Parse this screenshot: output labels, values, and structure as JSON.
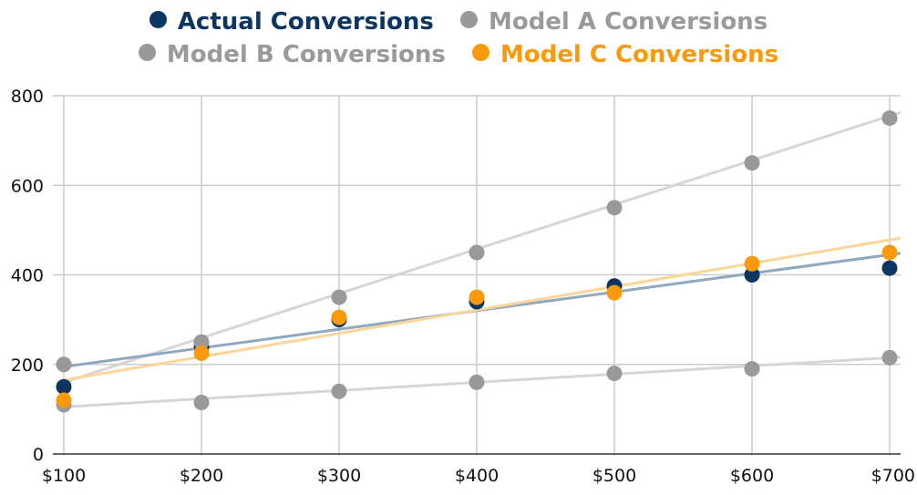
{
  "chart_data": {
    "type": "scatter",
    "title": "",
    "xlabel": "",
    "ylabel": "",
    "x": [
      100,
      200,
      300,
      400,
      500,
      600,
      700
    ],
    "x_tick_labels": [
      "$100",
      "$200",
      "$300",
      "$400",
      "$500",
      "$600",
      "$700"
    ],
    "y_ticks": [
      0,
      200,
      400,
      600,
      800
    ],
    "y_tick_labels": [
      "0",
      "200",
      "400",
      "600",
      "800"
    ],
    "xlim": [
      100,
      700
    ],
    "ylim": [
      0,
      800
    ],
    "grid": true,
    "legend_position": "top",
    "series": [
      {
        "name": "Actual Conversions",
        "color": "#0d3561",
        "trend_color": "#8fa7bf",
        "values": [
          150,
          240,
          300,
          340,
          375,
          400,
          415
        ],
        "trendline": [
          195,
          445
        ]
      },
      {
        "name": "Model A Conversions",
        "color": "#999999",
        "trend_color": "#d6d6d6",
        "values": [
          200,
          250,
          350,
          450,
          550,
          650,
          750
        ],
        "trendline": [
          160,
          755
        ]
      },
      {
        "name": "Model B Conversions",
        "color": "#999999",
        "trend_color": "#d6d6d6",
        "values": [
          110,
          115,
          140,
          160,
          180,
          190,
          215
        ],
        "trendline": [
          105,
          215
        ]
      },
      {
        "name": "Model C Conversions",
        "color": "#fa9a0a",
        "trend_color": "#fbd699",
        "values": [
          120,
          225,
          305,
          350,
          360,
          425,
          450
        ],
        "trendline": [
          165,
          478
        ]
      }
    ]
  }
}
